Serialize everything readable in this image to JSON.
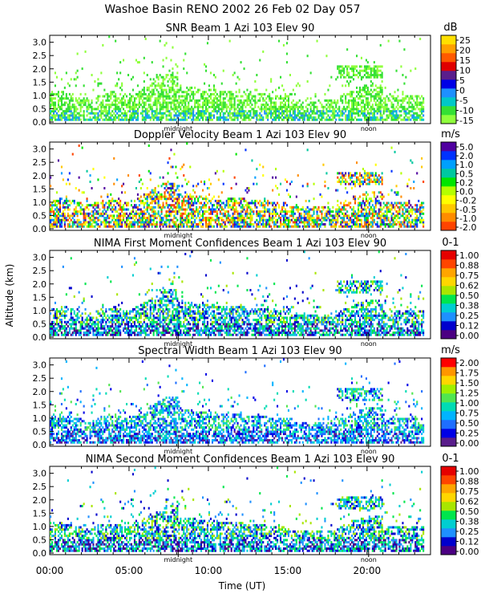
{
  "figure_title": "Washoe Basin RENO 2002  26 Feb 02 Day 057",
  "y_axis_title": "Altitude (km)",
  "x_axis_title": "Time (UT)",
  "x_tick_labels": [
    "00:00",
    "05:00",
    "10:00",
    "15:00",
    "20:00"
  ],
  "x_ticks_hours": [
    0,
    5,
    10,
    15,
    20
  ],
  "y_tick_labels": [
    "0.0",
    "0.5",
    "1.0",
    "1.5",
    "2.0",
    "2.5",
    "3.0"
  ],
  "y_ticks_km": [
    0.0,
    0.5,
    1.0,
    1.5,
    2.0,
    2.5,
    3.0
  ],
  "markers": [
    {
      "label": "midnight",
      "hour": 8.1
    },
    {
      "label": "noon",
      "hour": 20.1
    }
  ],
  "colors": {
    "snr_scale": [
      "#8fff3c",
      "#34e034",
      "#00c8c8",
      "#1e90ff",
      "#0000e6",
      "#5a1e8c",
      "#e00000",
      "#ff5a00",
      "#ffa000",
      "#ffe000"
    ],
    "vel_scale": [
      "#ff4400",
      "#ff8c00",
      "#ffc800",
      "#ffff00",
      "#b4ff00",
      "#00e600",
      "#00c8a0",
      "#00a0ff",
      "#0032ff",
      "#5000a0"
    ],
    "conf_scale": [
      "#4b0082",
      "#0000cd",
      "#1e90ff",
      "#00ced1",
      "#00e64d",
      "#a8e600",
      "#ffd700",
      "#ffa500",
      "#ff4500",
      "#e60000"
    ],
    "width_scale": [
      "#5a1e8c",
      "#0000e6",
      "#1e6eff",
      "#00b4ff",
      "#00dcb4",
      "#50e650",
      "#a0f000",
      "#ffd700",
      "#ff9600",
      "#ff0000"
    ]
  },
  "chart_data": [
    {
      "type": "heatmap",
      "title": "SNR Beam 1 Azi 103 Elev 90",
      "unit": "dB",
      "xlabel": "Time (UT)",
      "ylabel": "Altitude (km)",
      "xlim": [
        0,
        24
      ],
      "ylim": [
        0,
        3.2
      ],
      "colorbar_labels": [
        "-15",
        "-10",
        "-5",
        "0",
        "5",
        "10",
        "15",
        "20",
        "25"
      ],
      "palette": "snr_scale"
    },
    {
      "type": "heatmap",
      "title": "Doppler Velocity Beam 1 Azi 103 Elev 90",
      "unit": "m/s",
      "xlabel": "Time (UT)",
      "ylabel": "Altitude (km)",
      "xlim": [
        0,
        24
      ],
      "ylim": [
        0,
        3.2
      ],
      "colorbar_labels": [
        "-2.0",
        "-1.0",
        "-0.5",
        "-0.2",
        "0.0",
        "0.2",
        "0.5",
        "1.0",
        "2.0",
        "5.0"
      ],
      "palette": "vel_scale"
    },
    {
      "type": "heatmap",
      "title": "NIMA First Moment Confidences Beam 1 Azi 103 Elev 90",
      "unit": "0-1",
      "xlabel": "Time (UT)",
      "ylabel": "Altitude (km)",
      "xlim": [
        0,
        24
      ],
      "ylim": [
        0,
        3.2
      ],
      "colorbar_labels": [
        "0.00",
        "0.12",
        "0.25",
        "0.38",
        "0.50",
        "0.62",
        "0.75",
        "0.88",
        "1.00"
      ],
      "palette": "conf_scale"
    },
    {
      "type": "heatmap",
      "title": "Spectral Width Beam 1 Azi 103 Elev 90",
      "unit": "m/s",
      "xlabel": "Time (UT)",
      "ylabel": "Altitude (km)",
      "xlim": [
        0,
        24
      ],
      "ylim": [
        0,
        3.2
      ],
      "colorbar_labels": [
        "0.00",
        "0.25",
        "0.50",
        "0.75",
        "1.00",
        "1.25",
        "1.50",
        "1.75",
        "2.00"
      ],
      "palette": "width_scale"
    },
    {
      "type": "heatmap",
      "title": "NIMA Second Moment Confidences Beam 1 Azi 103 Elev 90",
      "unit": "0-1",
      "xlabel": "Time (UT)",
      "ylabel": "Altitude (km)",
      "xlim": [
        0,
        24
      ],
      "ylim": [
        0,
        3.2
      ],
      "colorbar_labels": [
        "0.00",
        "0.12",
        "0.25",
        "0.38",
        "0.50",
        "0.62",
        "0.75",
        "0.88",
        "1.00"
      ],
      "palette": "conf_scale"
    }
  ]
}
